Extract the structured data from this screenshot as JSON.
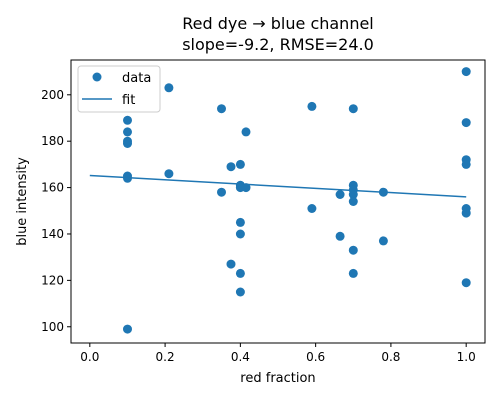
{
  "chart_data": {
    "type": "scatter",
    "title_line1": "Red dye → blue channel",
    "title_line2": "slope=-9.2, RMSE=24.0",
    "xlabel": "red fraction",
    "ylabel": "blue intensity",
    "xlim": [
      -0.05,
      1.05
    ],
    "ylim": [
      93,
      215
    ],
    "xticks": [
      0.0,
      0.2,
      0.4,
      0.6,
      0.8,
      1.0
    ],
    "xtick_labels": [
      "0.0",
      "0.2",
      "0.4",
      "0.6",
      "0.8",
      "1.0"
    ],
    "yticks": [
      100,
      120,
      140,
      160,
      180,
      200
    ],
    "ytick_labels": [
      "100",
      "120",
      "140",
      "160",
      "180",
      "200"
    ],
    "grid": false,
    "legend": {
      "placement": "top-left",
      "entries": [
        "data",
        "fit"
      ]
    },
    "color": "#1f77b4",
    "series": [
      {
        "name": "data",
        "kind": "scatter",
        "points": [
          [
            0.1,
            99
          ],
          [
            0.1,
            164
          ],
          [
            0.1,
            165
          ],
          [
            0.1,
            179
          ],
          [
            0.1,
            180
          ],
          [
            0.1,
            184
          ],
          [
            0.1,
            189
          ],
          [
            0.21,
            203
          ],
          [
            0.21,
            166
          ],
          [
            0.35,
            194
          ],
          [
            0.35,
            158
          ],
          [
            0.375,
            169
          ],
          [
            0.375,
            127
          ],
          [
            0.4,
            170
          ],
          [
            0.4,
            161
          ],
          [
            0.4,
            160
          ],
          [
            0.4,
            145
          ],
          [
            0.4,
            140
          ],
          [
            0.4,
            123
          ],
          [
            0.4,
            115
          ],
          [
            0.415,
            184
          ],
          [
            0.415,
            160
          ],
          [
            0.59,
            195
          ],
          [
            0.59,
            151
          ],
          [
            0.665,
            157
          ],
          [
            0.665,
            139
          ],
          [
            0.7,
            194
          ],
          [
            0.7,
            161
          ],
          [
            0.7,
            159
          ],
          [
            0.7,
            157
          ],
          [
            0.7,
            154
          ],
          [
            0.7,
            133
          ],
          [
            0.7,
            123
          ],
          [
            0.78,
            158
          ],
          [
            0.78,
            137
          ],
          [
            1.0,
            210
          ],
          [
            1.0,
            188
          ],
          [
            1.0,
            172
          ],
          [
            1.0,
            170
          ],
          [
            1.0,
            151
          ],
          [
            1.0,
            149
          ],
          [
            1.0,
            119
          ]
        ]
      },
      {
        "name": "fit",
        "kind": "line",
        "points": [
          [
            0.0,
            165.2
          ],
          [
            1.0,
            156.0
          ]
        ]
      }
    ]
  }
}
